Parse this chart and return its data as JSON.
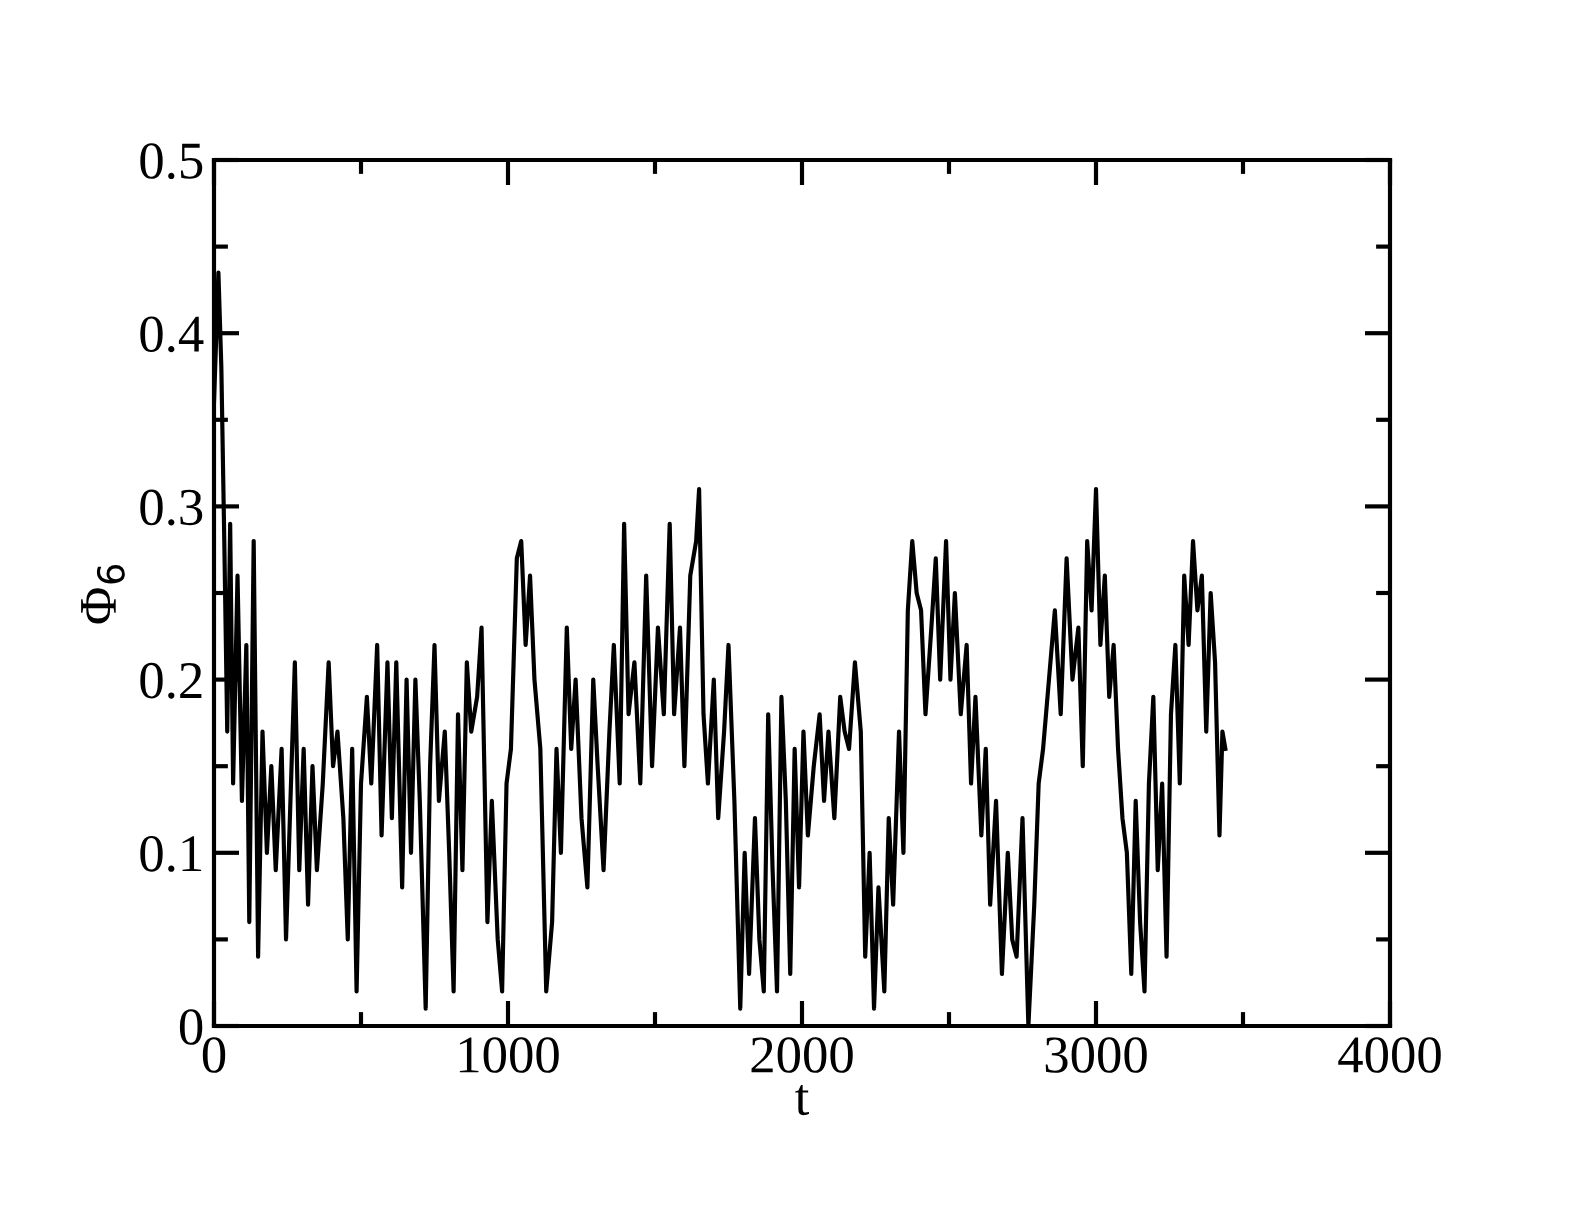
{
  "chart_data": {
    "type": "line",
    "xlabel": "t",
    "ylabel": "Φ$_{6}$",
    "xlim": [
      0,
      4000
    ],
    "ylim": [
      0,
      0.5
    ],
    "xticks": [
      0,
      {
        "value": 500,
        "label": null
      },
      1000,
      {
        "value": 1500,
        "label": null
      },
      2000,
      {
        "value": 2500,
        "label": null
      },
      3000,
      {
        "value": 3500,
        "label": null
      },
      4000
    ],
    "yticks": [
      0,
      {
        "value": 0.05,
        "label": null
      },
      0.1,
      {
        "value": 0.15,
        "label": null
      },
      0.2,
      {
        "value": 0.25,
        "label": null
      },
      0.3,
      {
        "value": 0.35,
        "label": null
      },
      0.4,
      {
        "value": 0.45,
        "label": null
      },
      0.5
    ],
    "grid": false,
    "legend": false,
    "marker": "none",
    "line_style": "solid",
    "series": [
      {
        "color": "#000000",
        "x": [
          0,
          15,
          25,
          35,
          45,
          55,
          65,
          80,
          95,
          110,
          120,
          135,
          150,
          165,
          180,
          195,
          210,
          230,
          245,
          260,
          275,
          290,
          305,
          320,
          335,
          350,
          370,
          390,
          405,
          420,
          440,
          455,
          470,
          485,
          500,
          520,
          535,
          555,
          570,
          590,
          605,
          620,
          640,
          655,
          670,
          685,
          700,
          720,
          735,
          750,
          765,
          785,
          800,
          815,
          830,
          845,
          860,
          875,
          895,
          910,
          930,
          945,
          965,
          980,
          995,
          1010,
          1030,
          1045,
          1060,
          1075,
          1090,
          1110,
          1130,
          1150,
          1165,
          1180,
          1200,
          1215,
          1230,
          1250,
          1270,
          1290,
          1305,
          1325,
          1345,
          1360,
          1380,
          1395,
          1410,
          1430,
          1450,
          1470,
          1490,
          1510,
          1530,
          1550,
          1565,
          1585,
          1600,
          1620,
          1640,
          1650,
          1665,
          1680,
          1700,
          1715,
          1735,
          1750,
          1770,
          1790,
          1805,
          1820,
          1840,
          1855,
          1870,
          1885,
          1900,
          1915,
          1930,
          1945,
          1960,
          1975,
          1990,
          2005,
          2020,
          2040,
          2060,
          2075,
          2090,
          2110,
          2130,
          2145,
          2160,
          2180,
          2200,
          2215,
          2230,
          2245,
          2260,
          2280,
          2295,
          2310,
          2330,
          2345,
          2360,
          2375,
          2390,
          2405,
          2420,
          2440,
          2455,
          2470,
          2490,
          2505,
          2520,
          2540,
          2560,
          2575,
          2590,
          2610,
          2625,
          2640,
          2660,
          2680,
          2700,
          2715,
          2730,
          2750,
          2770,
          2790,
          2805,
          2820,
          2840,
          2860,
          2880,
          2900,
          2920,
          2940,
          2955,
          2970,
          2985,
          3000,
          3015,
          3030,
          3045,
          3060,
          3075,
          3090,
          3105,
          3120,
          3135,
          3150,
          3165,
          3180,
          3195,
          3210,
          3225,
          3240,
          3255,
          3270,
          3285,
          3300,
          3315,
          3330,
          3345,
          3360,
          3375,
          3390,
          3405,
          3420,
          3430,
          3440
        ],
        "values": [
          0.36,
          0.435,
          0.38,
          0.28,
          0.17,
          0.29,
          0.14,
          0.26,
          0.13,
          0.22,
          0.06,
          0.28,
          0.04,
          0.17,
          0.1,
          0.15,
          0.09,
          0.16,
          0.05,
          0.13,
          0.21,
          0.09,
          0.16,
          0.07,
          0.15,
          0.09,
          0.14,
          0.21,
          0.15,
          0.17,
          0.12,
          0.05,
          0.16,
          0.02,
          0.14,
          0.19,
          0.14,
          0.22,
          0.11,
          0.21,
          0.12,
          0.21,
          0.08,
          0.2,
          0.1,
          0.2,
          0.13,
          0.01,
          0.15,
          0.22,
          0.13,
          0.17,
          0.1,
          0.02,
          0.18,
          0.09,
          0.21,
          0.17,
          0.19,
          0.23,
          0.06,
          0.13,
          0.05,
          0.02,
          0.14,
          0.16,
          0.27,
          0.28,
          0.22,
          0.26,
          0.2,
          0.16,
          0.02,
          0.06,
          0.16,
          0.1,
          0.23,
          0.16,
          0.2,
          0.12,
          0.08,
          0.2,
          0.15,
          0.09,
          0.17,
          0.22,
          0.14,
          0.29,
          0.18,
          0.21,
          0.14,
          0.26,
          0.15,
          0.23,
          0.18,
          0.29,
          0.18,
          0.23,
          0.15,
          0.26,
          0.28,
          0.31,
          0.18,
          0.14,
          0.2,
          0.12,
          0.17,
          0.22,
          0.13,
          0.01,
          0.1,
          0.03,
          0.12,
          0.05,
          0.02,
          0.18,
          0.09,
          0.02,
          0.19,
          0.13,
          0.03,
          0.16,
          0.08,
          0.17,
          0.11,
          0.15,
          0.18,
          0.13,
          0.17,
          0.12,
          0.19,
          0.17,
          0.16,
          0.21,
          0.17,
          0.04,
          0.1,
          0.01,
          0.08,
          0.02,
          0.12,
          0.07,
          0.17,
          0.1,
          0.24,
          0.28,
          0.25,
          0.24,
          0.18,
          0.23,
          0.27,
          0.2,
          0.28,
          0.2,
          0.25,
          0.18,
          0.22,
          0.14,
          0.19,
          0.11,
          0.16,
          0.07,
          0.13,
          0.03,
          0.1,
          0.05,
          0.04,
          0.12,
          0.0,
          0.07,
          0.14,
          0.16,
          0.2,
          0.24,
          0.18,
          0.27,
          0.2,
          0.23,
          0.15,
          0.28,
          0.24,
          0.31,
          0.22,
          0.26,
          0.19,
          0.22,
          0.16,
          0.12,
          0.1,
          0.03,
          0.13,
          0.06,
          0.02,
          0.14,
          0.19,
          0.09,
          0.14,
          0.04,
          0.18,
          0.22,
          0.14,
          0.26,
          0.22,
          0.28,
          0.24,
          0.26,
          0.17,
          0.25,
          0.21,
          0.11,
          0.17,
          0.16
        ]
      }
    ]
  }
}
